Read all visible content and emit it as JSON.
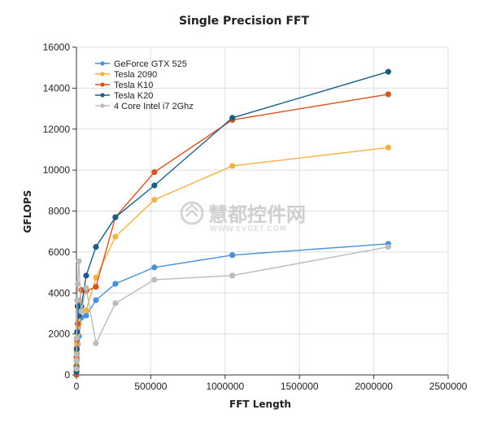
{
  "chart_data": {
    "type": "line",
    "title": "Single Precision FFT",
    "xlabel": "FFT Length",
    "ylabel": "GFLOPS",
    "xlim": [
      0,
      2500000
    ],
    "ylim": [
      0,
      16000
    ],
    "x_ticks": [
      "0",
      "500000",
      "1000000",
      "1500000",
      "2000000",
      "2500000"
    ],
    "y_ticks": [
      "0",
      "2000",
      "4000",
      "6000",
      "8000",
      "10000",
      "12000",
      "14000",
      "16000"
    ],
    "x_tick_values": [
      0,
      500000,
      1000000,
      1500000,
      2000000,
      2500000
    ],
    "y_tick_values": [
      0,
      2000,
      4000,
      6000,
      8000,
      10000,
      12000,
      14000,
      16000
    ],
    "grid": true,
    "legend_position": "top-left",
    "series": [
      {
        "name": "GeForce GTX 525",
        "color": "#4a90d9",
        "x": [
          256,
          512,
          1024,
          2048,
          4096,
          8192,
          16384,
          32768,
          65536,
          131072,
          262144,
          524288,
          1048576,
          2097152
        ],
        "y": [
          150,
          300,
          500,
          750,
          1050,
          1500,
          1900,
          2800,
          2900,
          3650,
          4450,
          5250,
          5850,
          6400
        ]
      },
      {
        "name": "Tesla 2090",
        "color": "#f5b042",
        "x": [
          256,
          512,
          1024,
          2048,
          4096,
          8192,
          16384,
          32768,
          65536,
          131072,
          262144,
          524288,
          1048576,
          2097152
        ],
        "y": [
          250,
          500,
          800,
          1100,
          1500,
          2000,
          2500,
          3100,
          3150,
          4750,
          6750,
          8550,
          10200,
          11100
        ]
      },
      {
        "name": "Tesla K10",
        "color": "#d9531e",
        "x": [
          256,
          512,
          1024,
          2048,
          4096,
          8192,
          16384,
          32768,
          65536,
          131072,
          262144,
          524288,
          1048576,
          2097152
        ],
        "y": [
          0,
          400,
          900,
          1300,
          1700,
          2500,
          3400,
          4150,
          4100,
          4300,
          7700,
          9900,
          12450,
          13700
        ]
      },
      {
        "name": "Tesla K20",
        "color": "#1a5e85",
        "x": [
          256,
          512,
          1024,
          2048,
          4096,
          8192,
          16384,
          32768,
          65536,
          131072,
          262144,
          524288,
          1048576,
          2097152
        ],
        "y": [
          150,
          350,
          700,
          1250,
          2100,
          3350,
          2900,
          3350,
          4850,
          6250,
          7700,
          9250,
          12550,
          14800
        ]
      },
      {
        "name": "4 Core Intel i7 2Ghz",
        "color": "#bbbbbb",
        "x": [
          256,
          512,
          1024,
          2048,
          4096,
          8192,
          16384,
          32768,
          65536,
          131072,
          262144,
          524288,
          1048576,
          2097152
        ],
        "y": [
          300,
          700,
          1000,
          1800,
          3650,
          4450,
          5550,
          3100,
          4250,
          1550,
          3500,
          4650,
          4850,
          6250
        ]
      }
    ]
  },
  "watermark": {
    "text": "慧都控件网",
    "url_text": "WWW.EVGET.COM"
  }
}
